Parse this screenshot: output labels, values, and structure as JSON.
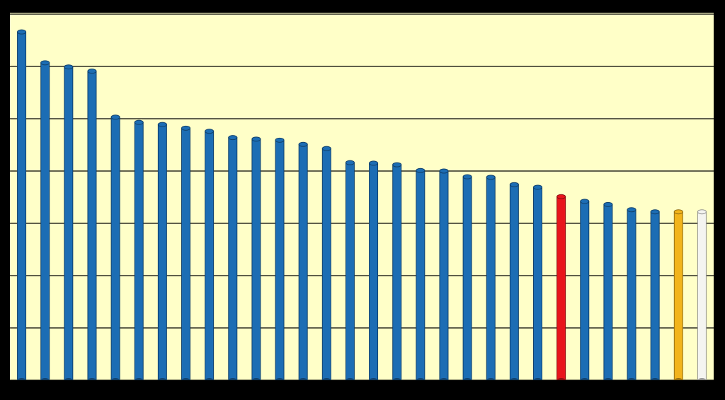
{
  "chart_data": {
    "type": "bar",
    "categories": [
      null,
      null,
      null,
      null,
      null,
      null,
      null,
      null,
      null,
      null,
      null,
      null,
      null,
      null,
      null,
      null,
      null,
      null,
      null,
      null,
      null,
      null,
      null,
      null,
      null,
      null,
      null,
      null,
      null,
      null
    ],
    "values": [
      6.66,
      6.07,
      5.99,
      5.91,
      5.03,
      4.93,
      4.89,
      4.82,
      4.76,
      4.64,
      4.61,
      4.59,
      4.51,
      4.43,
      4.16,
      4.15,
      4.12,
      4.01,
      4.0,
      3.89,
      3.88,
      3.74,
      3.69,
      3.51,
      3.42,
      3.36,
      3.26,
      3.22,
      3.22,
      3.22
    ],
    "colors": [
      "#1c6db4",
      "#1c6db4",
      "#1c6db4",
      "#1c6db4",
      "#1c6db4",
      "#1c6db4",
      "#1c6db4",
      "#1c6db4",
      "#1c6db4",
      "#1c6db4",
      "#1c6db4",
      "#1c6db4",
      "#1c6db4",
      "#1c6db4",
      "#1c6db4",
      "#1c6db4",
      "#1c6db4",
      "#1c6db4",
      "#1c6db4",
      "#1c6db4",
      "#1c6db4",
      "#1c6db4",
      "#1c6db4",
      "#e8141b",
      "#1c6db4",
      "#1c6db4",
      "#1c6db4",
      "#1c6db4",
      "#f2b41c",
      "#f4f4f0"
    ],
    "ylim": [
      0,
      7
    ],
    "yticks": [
      0,
      1,
      2,
      3,
      4,
      5,
      6,
      7
    ],
    "grid": true
  }
}
